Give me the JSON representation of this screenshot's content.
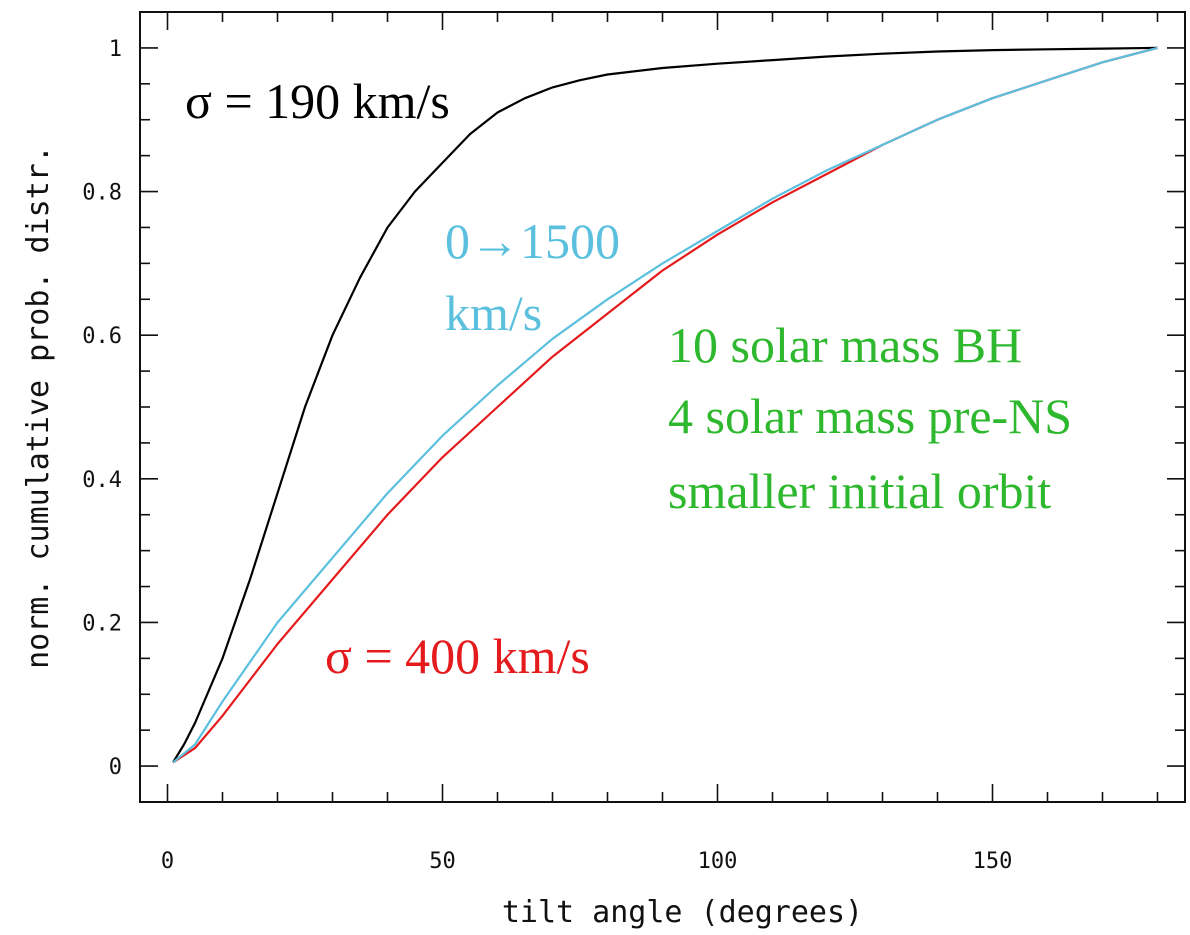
{
  "chart_data": {
    "type": "line",
    "title": "",
    "xlabel": "tilt angle (degrees)",
    "ylabel": "norm. cumulative prob. distr.",
    "xlim": [
      -5,
      185
    ],
    "ylim": [
      -0.05,
      1.05
    ],
    "x_ticks": [
      {
        "value": 0,
        "label": "0"
      },
      {
        "value": 50,
        "label": "50"
      },
      {
        "value": 100,
        "label": "100"
      },
      {
        "value": 150,
        "label": "150"
      }
    ],
    "y_ticks": [
      {
        "value": 0,
        "label": "0"
      },
      {
        "value": 0.2,
        "label": "0.2"
      },
      {
        "value": 0.4,
        "label": "0.4"
      },
      {
        "value": 0.6,
        "label": "0.6"
      },
      {
        "value": 0.8,
        "label": "0.8"
      },
      {
        "value": 1,
        "label": "1"
      }
    ],
    "grid": false,
    "series": [
      {
        "color": "#000000",
        "x": [
          1,
          3,
          5,
          10,
          15,
          20,
          25,
          30,
          35,
          40,
          45,
          50,
          55,
          60,
          65,
          70,
          75,
          80,
          90,
          100,
          110,
          120,
          130,
          140,
          150,
          160,
          170,
          180
        ],
        "y": [
          0.005,
          0.03,
          0.06,
          0.15,
          0.26,
          0.38,
          0.5,
          0.6,
          0.68,
          0.75,
          0.8,
          0.84,
          0.88,
          0.91,
          0.93,
          0.945,
          0.955,
          0.963,
          0.972,
          0.978,
          0.983,
          0.988,
          0.992,
          0.995,
          0.997,
          0.998,
          0.999,
          1.0
        ]
      },
      {
        "color": "#e41a1c",
        "x": [
          1,
          5,
          10,
          20,
          30,
          40,
          50,
          60,
          70,
          80,
          90,
          100,
          110,
          120,
          130,
          140,
          150,
          160,
          170,
          180
        ],
        "y": [
          0.005,
          0.025,
          0.07,
          0.17,
          0.26,
          0.35,
          0.43,
          0.5,
          0.57,
          0.63,
          0.69,
          0.74,
          0.785,
          0.825,
          0.865,
          0.9,
          0.93,
          0.955,
          0.98,
          1.0
        ]
      },
      {
        "color": "#5bc0de",
        "x": [
          1,
          5,
          10,
          20,
          30,
          40,
          50,
          60,
          70,
          80,
          90,
          100,
          110,
          120,
          130,
          140,
          150,
          160,
          170,
          180
        ],
        "y": [
          0.005,
          0.03,
          0.09,
          0.2,
          0.29,
          0.38,
          0.46,
          0.53,
          0.595,
          0.65,
          0.7,
          0.745,
          0.79,
          0.83,
          0.865,
          0.9,
          0.93,
          0.955,
          0.98,
          1.0
        ]
      }
    ],
    "annotations": [
      {
        "text": "σ = 190 km/s",
        "color": "#000000"
      },
      {
        "text": "0→1500",
        "color": "#5bc0de"
      },
      {
        "text": "km/s",
        "color": "#5bc0de"
      },
      {
        "text": "10 solar mass BH",
        "color": "#2db82d"
      },
      {
        "text": "4 solar mass pre-NS",
        "color": "#2db82d"
      },
      {
        "text": "smaller initial orbit",
        "color": "#2db82d"
      },
      {
        "text": "σ = 400 km/s",
        "color": "#e41a1c"
      }
    ]
  }
}
